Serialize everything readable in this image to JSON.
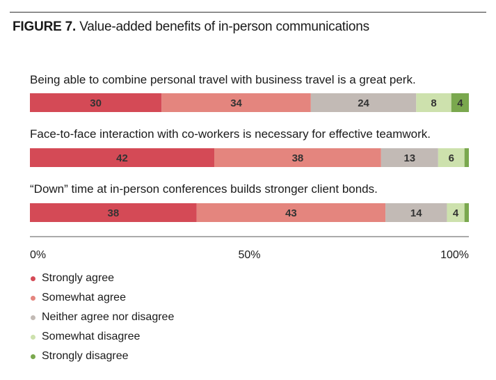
{
  "figure": {
    "number": "FIGURE 7.",
    "title": "Value-added benefits of in-person communications"
  },
  "colors": {
    "strongly_agree": "#d44a56",
    "somewhat_agree": "#e4857e",
    "neither": "#c2bab5",
    "somewhat_disagree": "#cde1ad",
    "strongly_disagree": "#7aa84e"
  },
  "chart_data": {
    "type": "bar",
    "orientation": "horizontal",
    "stacked": true,
    "title": "Value-added benefits of in-person communications",
    "categories": [
      "Being able to combine personal travel with business travel is a great perk.",
      "Face-to-face interaction with co-workers is necessary for effective teamwork.",
      "“Down” time at in-person conferences builds stronger client bonds."
    ],
    "series": [
      {
        "name": "Strongly agree",
        "color": "#d44a56",
        "values": [
          30,
          42,
          38
        ]
      },
      {
        "name": "Somewhat agree",
        "color": "#e4857e",
        "values": [
          34,
          38,
          43
        ]
      },
      {
        "name": "Neither agree nor disagree",
        "color": "#c2bab5",
        "values": [
          24,
          13,
          14
        ]
      },
      {
        "name": "Somewhat disagree",
        "color": "#cde1ad",
        "values": [
          8,
          6,
          4
        ]
      },
      {
        "name": "Strongly disagree",
        "color": "#7aa84e",
        "values": [
          4,
          1,
          1
        ]
      }
    ],
    "value_labels": [
      [
        "30",
        "34",
        "24",
        "8",
        "4"
      ],
      [
        "42",
        "38",
        "13",
        "6",
        ""
      ],
      [
        "38",
        "43",
        "14",
        "4",
        ""
      ]
    ],
    "xlim": [
      0,
      100
    ],
    "x_ticks": [
      "0%",
      "50%",
      "100%"
    ],
    "grid": false,
    "legend_placement": "bottom-left"
  }
}
